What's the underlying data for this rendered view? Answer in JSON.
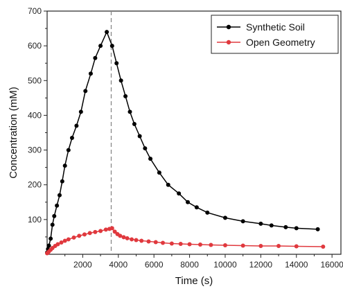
{
  "chart_data": {
    "type": "line",
    "title": "",
    "xlabel": "Time (s)",
    "ylabel": "Concentration (mM)",
    "xlim": [
      0,
      16500
    ],
    "ylim": [
      0,
      700
    ],
    "xticks": [
      2000,
      4000,
      6000,
      8000,
      10000,
      12000,
      14000,
      16000
    ],
    "yticks": [
      100,
      200,
      300,
      400,
      500,
      600,
      700
    ],
    "xtick_labels": [
      "2000",
      "4000",
      "6000",
      "8000",
      "10000",
      "12000",
      "14000",
      "16000"
    ],
    "ytick_labels": [
      "100",
      "200",
      "300",
      "400",
      "500",
      "600",
      "700"
    ],
    "vline_x": 3600,
    "legend_position": "top-right",
    "grid": false,
    "series": [
      {
        "name": "Synthetic Soil",
        "color": "#000000",
        "x": [
          0,
          50,
          100,
          200,
          300,
          400,
          550,
          700,
          850,
          1000,
          1200,
          1400,
          1650,
          1900,
          2150,
          2450,
          2700,
          3000,
          3350,
          3650,
          3900,
          4150,
          4400,
          4650,
          4900,
          5200,
          5500,
          5800,
          6300,
          6800,
          7400,
          7900,
          8400,
          9000,
          10000,
          11000,
          12000,
          12600,
          13400,
          14000,
          15200
        ],
        "y": [
          5,
          15,
          25,
          45,
          85,
          110,
          140,
          170,
          210,
          255,
          300,
          335,
          370,
          410,
          470,
          520,
          565,
          600,
          640,
          600,
          550,
          500,
          455,
          410,
          375,
          340,
          305,
          275,
          235,
          200,
          175,
          150,
          135,
          120,
          105,
          95,
          88,
          83,
          78,
          75,
          72
        ]
      },
      {
        "name": "Open Geometry",
        "color": "#e0393e",
        "x": [
          0,
          50,
          100,
          200,
          300,
          450,
          600,
          800,
          1000,
          1200,
          1500,
          1800,
          2100,
          2400,
          2700,
          3000,
          3300,
          3500,
          3650,
          3800,
          3950,
          4100,
          4300,
          4500,
          4750,
          5000,
          5300,
          5700,
          6100,
          6500,
          7000,
          7500,
          8000,
          8600,
          9200,
          10000,
          11000,
          12000,
          13000,
          14000,
          15500
        ],
        "y": [
          3,
          5,
          8,
          13,
          18,
          24,
          29,
          34,
          39,
          43,
          48,
          53,
          57,
          61,
          64,
          67,
          71,
          73,
          75,
          65,
          58,
          53,
          49,
          46,
          43,
          41,
          39,
          37,
          35,
          33,
          31,
          30,
          29,
          28,
          27,
          26,
          25,
          24,
          24,
          23,
          22
        ]
      }
    ]
  }
}
